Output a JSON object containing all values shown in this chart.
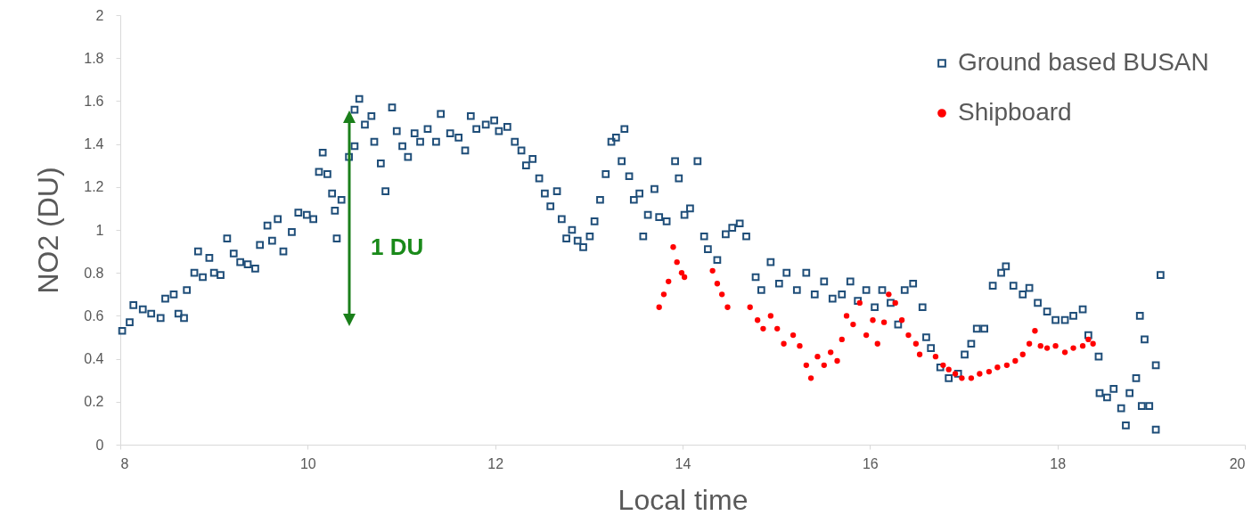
{
  "chart_data": {
    "type": "scatter",
    "xlabel": "Local time",
    "ylabel": "NO2 (DU)",
    "xlim": [
      8,
      20
    ],
    "xticks": [
      8,
      10,
      12,
      14,
      16,
      18,
      20
    ],
    "ylim": [
      0,
      2
    ],
    "yticks": [
      0,
      0.2,
      0.4,
      0.6,
      0.8,
      1,
      1.2,
      1.4,
      1.6,
      1.8,
      2
    ],
    "grid": false,
    "legend": "top right",
    "annotations": [
      "1 DU"
    ],
    "series": [
      {
        "name": "Ground based BUSAN",
        "color": "#1f4e79",
        "marker": "square",
        "x": [
          8.02,
          8.1,
          8.14,
          8.24,
          8.33,
          8.43,
          8.48,
          8.57,
          8.62,
          8.68,
          8.71,
          8.79,
          8.83,
          8.88,
          8.95,
          9.0,
          9.07,
          9.14,
          9.21,
          9.28,
          9.36,
          9.44,
          9.49,
          9.57,
          9.62,
          9.68,
          9.74,
          9.83,
          9.9,
          9.99,
          10.06,
          10.12,
          10.16,
          10.21,
          10.26,
          10.29,
          10.31,
          10.36,
          10.44,
          10.5,
          10.5,
          10.55,
          10.61,
          10.68,
          10.71,
          10.78,
          10.83,
          10.9,
          10.95,
          11.01,
          11.07,
          11.14,
          11.2,
          11.28,
          11.37,
          11.42,
          11.52,
          11.61,
          11.68,
          11.74,
          11.8,
          11.9,
          11.99,
          12.04,
          12.13,
          12.21,
          12.28,
          12.33,
          12.4,
          12.47,
          12.53,
          12.59,
          12.66,
          12.71,
          12.76,
          12.82,
          12.88,
          12.94,
          13.01,
          13.06,
          13.12,
          13.18,
          13.24,
          13.29,
          13.35,
          13.38,
          13.43,
          13.48,
          13.54,
          13.58,
          13.63,
          13.7,
          13.75,
          13.83,
          13.92,
          13.96,
          14.02,
          14.08,
          14.16,
          14.23,
          14.27,
          14.37,
          14.46,
          14.53,
          14.61,
          14.68,
          14.78,
          14.84,
          14.94,
          15.03,
          15.11,
          15.22,
          15.32,
          15.41,
          15.51,
          15.6,
          15.7,
          15.79,
          15.87,
          15.96,
          16.05,
          16.13,
          16.22,
          16.3,
          16.37,
          16.46,
          16.56,
          16.6,
          16.65,
          16.75,
          16.84,
          16.94,
          17.01,
          17.08,
          17.14,
          17.22,
          17.31,
          17.4,
          17.45,
          17.53,
          17.63,
          17.7,
          17.79,
          17.89,
          17.98,
          18.08,
          18.17,
          18.27,
          18.33,
          18.44,
          18.45,
          18.53,
          18.6,
          18.68,
          18.73,
          18.77,
          18.84,
          18.88,
          18.9,
          18.93,
          18.98,
          19.05,
          19.05,
          19.1
        ],
        "values": [
          0.53,
          0.57,
          0.65,
          0.63,
          0.61,
          0.59,
          0.68,
          0.7,
          0.61,
          0.59,
          0.72,
          0.8,
          0.9,
          0.78,
          0.87,
          0.8,
          0.79,
          0.96,
          0.89,
          0.85,
          0.84,
          0.82,
          0.93,
          1.02,
          0.95,
          1.05,
          0.9,
          0.99,
          1.08,
          1.07,
          1.05,
          1.27,
          1.36,
          1.26,
          1.17,
          1.09,
          0.96,
          1.14,
          1.34,
          1.39,
          1.56,
          1.61,
          1.49,
          1.53,
          1.41,
          1.31,
          1.18,
          1.57,
          1.46,
          1.39,
          1.34,
          1.45,
          1.41,
          1.47,
          1.41,
          1.54,
          1.45,
          1.43,
          1.37,
          1.53,
          1.47,
          1.49,
          1.51,
          1.46,
          1.48,
          1.41,
          1.37,
          1.3,
          1.33,
          1.24,
          1.17,
          1.11,
          1.18,
          1.05,
          0.96,
          1.0,
          0.95,
          0.92,
          0.97,
          1.04,
          1.14,
          1.26,
          1.41,
          1.43,
          1.32,
          1.47,
          1.25,
          1.14,
          1.17,
          0.97,
          1.07,
          1.19,
          1.06,
          1.04,
          1.32,
          1.24,
          1.07,
          1.1,
          1.32,
          0.97,
          0.91,
          0.86,
          0.98,
          1.01,
          1.03,
          0.97,
          0.78,
          0.72,
          0.85,
          0.75,
          0.8,
          0.72,
          0.8,
          0.7,
          0.76,
          0.68,
          0.7,
          0.76,
          0.67,
          0.72,
          0.64,
          0.72,
          0.66,
          0.56,
          0.72,
          0.75,
          0.64,
          0.5,
          0.45,
          0.36,
          0.31,
          0.33,
          0.42,
          0.47,
          0.54,
          0.54,
          0.74,
          0.8,
          0.83,
          0.74,
          0.7,
          0.73,
          0.66,
          0.62,
          0.58,
          0.58,
          0.6,
          0.63,
          0.51,
          0.41,
          0.24,
          0.22,
          0.26,
          0.17,
          0.09,
          0.24,
          0.31,
          0.6,
          0.18,
          0.49,
          0.18,
          0.37,
          0.07,
          0.79
        ]
      },
      {
        "name": "Shipboard",
        "color": "#ff0000",
        "marker": "circle",
        "x": [
          13.75,
          13.8,
          13.85,
          13.9,
          13.94,
          13.99,
          14.02,
          14.32,
          14.37,
          14.42,
          14.48,
          14.72,
          14.8,
          14.86,
          14.94,
          15.01,
          15.08,
          15.18,
          15.25,
          15.32,
          15.37,
          15.44,
          15.51,
          15.58,
          15.65,
          15.7,
          15.75,
          15.82,
          15.89,
          15.96,
          16.03,
          16.08,
          16.15,
          16.2,
          16.27,
          16.34,
          16.41,
          16.49,
          16.53,
          16.7,
          16.78,
          16.84,
          16.91,
          16.98,
          17.08,
          17.17,
          17.27,
          17.36,
          17.46,
          17.55,
          17.63,
          17.7,
          17.76,
          17.82,
          17.89,
          17.98,
          18.08,
          18.17,
          18.27,
          18.33,
          18.38
        ],
        "values": [
          0.64,
          0.7,
          0.76,
          0.92,
          0.85,
          0.8,
          0.78,
          0.81,
          0.75,
          0.7,
          0.64,
          0.64,
          0.58,
          0.54,
          0.6,
          0.54,
          0.47,
          0.51,
          0.46,
          0.37,
          0.31,
          0.41,
          0.37,
          0.43,
          0.39,
          0.49,
          0.6,
          0.56,
          0.66,
          0.51,
          0.58,
          0.47,
          0.57,
          0.7,
          0.66,
          0.58,
          0.51,
          0.47,
          0.42,
          0.41,
          0.37,
          0.35,
          0.33,
          0.31,
          0.31,
          0.33,
          0.34,
          0.36,
          0.37,
          0.39,
          0.42,
          0.47,
          0.53,
          0.46,
          0.45,
          0.46,
          0.43,
          0.45,
          0.46,
          0.49,
          0.47
        ]
      }
    ]
  }
}
